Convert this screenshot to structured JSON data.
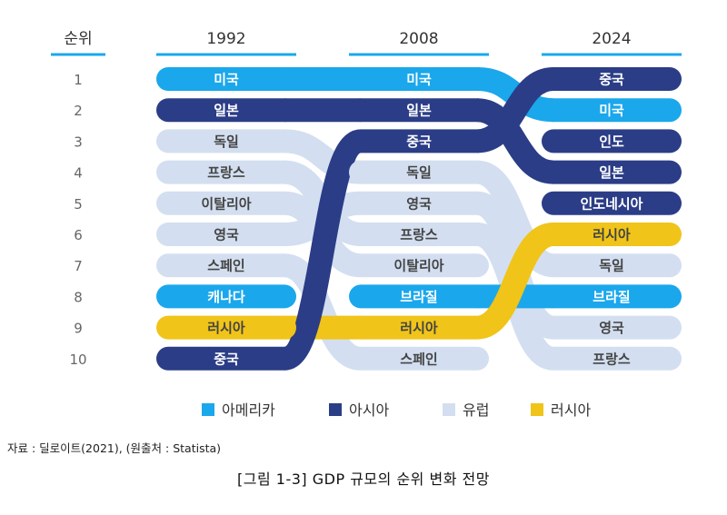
{
  "chart_data": {
    "type": "bump",
    "rank_header": "순위",
    "years": [
      "1992",
      "2008",
      "2024"
    ],
    "ranks": [
      "1",
      "2",
      "3",
      "4",
      "5",
      "6",
      "7",
      "8",
      "9",
      "10"
    ],
    "legend": [
      {
        "key": "america",
        "label": "아메리카",
        "color": "#1aa7ec"
      },
      {
        "key": "asia",
        "label": "아시아",
        "color": "#2b3d87"
      },
      {
        "key": "europe",
        "label": "유럽",
        "color": "#d3dff0"
      },
      {
        "key": "russia",
        "label": "러시아",
        "color": "#f0c419"
      }
    ],
    "series": [
      {
        "name": "미국",
        "region": "america",
        "ranks": [
          1,
          1,
          2
        ]
      },
      {
        "name": "일본",
        "region": "asia",
        "ranks": [
          2,
          2,
          4
        ]
      },
      {
        "name": "독일",
        "region": "europe",
        "ranks": [
          3,
          4,
          7
        ]
      },
      {
        "name": "프랑스",
        "region": "europe",
        "ranks": [
          4,
          6,
          10
        ]
      },
      {
        "name": "이탈리아",
        "region": "europe",
        "ranks": [
          5,
          7,
          null
        ]
      },
      {
        "name": "영국",
        "region": "europe",
        "ranks": [
          6,
          5,
          9
        ]
      },
      {
        "name": "스페인",
        "region": "europe",
        "ranks": [
          7,
          10,
          null
        ]
      },
      {
        "name": "캐나다",
        "region": "america",
        "ranks": [
          8,
          null,
          null
        ]
      },
      {
        "name": "러시아",
        "region": "russia",
        "ranks": [
          9,
          9,
          6
        ]
      },
      {
        "name": "중국",
        "region": "asia",
        "ranks": [
          10,
          3,
          1
        ]
      },
      {
        "name": "브라질",
        "region": "america",
        "ranks": [
          null,
          8,
          8
        ]
      },
      {
        "name": "인도",
        "region": "asia",
        "ranks": [
          null,
          null,
          3
        ]
      },
      {
        "name": "인도네시아",
        "region": "asia",
        "ranks": [
          null,
          null,
          5
        ]
      }
    ]
  },
  "source": "자료 : 딜로이트(2021), (원출처 : Statista)",
  "caption": "[그림 1-3] GDP 규모의 순위 변화 전망"
}
